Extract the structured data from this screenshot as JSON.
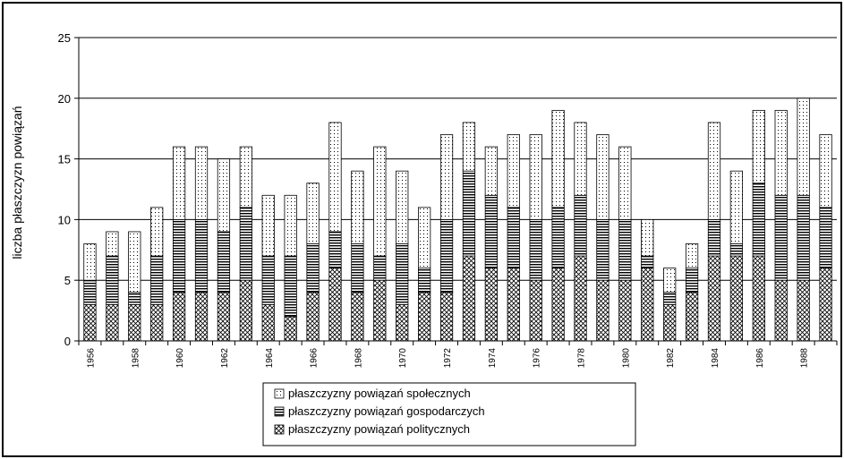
{
  "chart_data": {
    "type": "bar",
    "stacked": true,
    "title": "",
    "xlabel": "",
    "ylabel": "liczba płaszczyzn powiązań",
    "ylim": [
      0,
      25
    ],
    "yticks": [
      0,
      5,
      10,
      15,
      20,
      25
    ],
    "grid": true,
    "legend_position": "bottom-center",
    "categories": [
      "1956",
      "1957",
      "1958",
      "1959",
      "1960",
      "1961",
      "1962",
      "1963",
      "1964",
      "1965",
      "1966",
      "1967",
      "1968",
      "1969",
      "1970",
      "1971",
      "1972",
      "1973",
      "1974",
      "1975",
      "1976",
      "1977",
      "1978",
      "1979",
      "1980",
      "1981",
      "1982",
      "1983",
      "1984",
      "1985",
      "1986",
      "1987",
      "1988",
      "1989"
    ],
    "tick_labels": [
      "1956",
      "1958",
      "1960",
      "1962",
      "1964",
      "1966",
      "1968",
      "1970",
      "1972",
      "1974",
      "1976",
      "1978",
      "1980",
      "1982",
      "1984",
      "1986",
      "1988"
    ],
    "series": [
      {
        "name": "płaszczyzny powiązań politycznych",
        "pattern": "cross-hatch",
        "values": [
          3,
          3,
          3,
          3,
          4,
          4,
          4,
          5,
          3,
          2,
          4,
          6,
          4,
          5,
          3,
          4,
          4,
          7,
          6,
          6,
          5,
          6,
          7,
          5,
          5,
          6,
          3,
          4,
          7,
          7,
          7,
          5,
          5,
          6
        ]
      },
      {
        "name": "płaszczyzny powiązań gospodarczych",
        "pattern": "horizontal-lines",
        "values": [
          2,
          4,
          1,
          4,
          6,
          6,
          5,
          6,
          4,
          5,
          4,
          3,
          4,
          2,
          5,
          2,
          6,
          7,
          6,
          5,
          5,
          5,
          5,
          5,
          5,
          1,
          1,
          2,
          3,
          1,
          6,
          7,
          7,
          5
        ]
      },
      {
        "name": "płaszczyzny powiązań społecznych",
        "pattern": "dots",
        "values": [
          3,
          2,
          5,
          4,
          6,
          6,
          6,
          5,
          5,
          5,
          5,
          9,
          6,
          9,
          6,
          5,
          7,
          4,
          4,
          6,
          7,
          8,
          6,
          7,
          6,
          3,
          2,
          2,
          8,
          6,
          6,
          7,
          8,
          6
        ]
      }
    ],
    "legend_order": [
      2,
      1,
      0
    ]
  }
}
